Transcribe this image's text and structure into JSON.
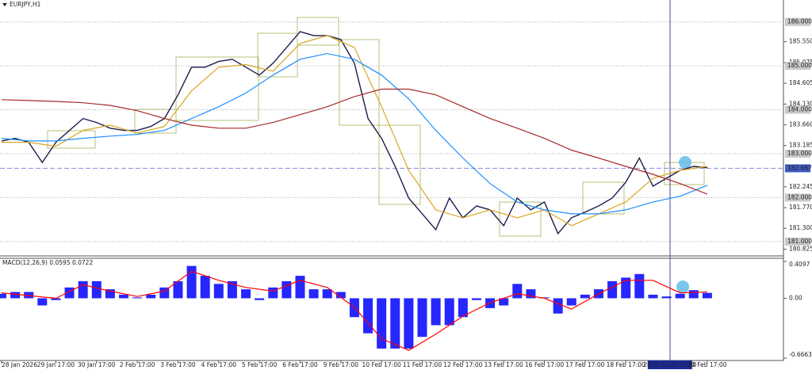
{
  "chart_data": [
    {
      "type": "line",
      "title": "EURJPY,H1",
      "xlim": [
        0,
        460
      ],
      "ylim": [
        180.69,
        186.5
      ],
      "xticks": [
        {
          "value": 0,
          "label": "28 Jan 2026"
        },
        {
          "value": 32,
          "label": "29 Jan 17:00"
        },
        {
          "value": 56,
          "label": "30 Jan 17:00"
        },
        {
          "value": 80,
          "label": "2 Feb 17:00"
        },
        {
          "value": 104,
          "label": "3 Feb 17:00"
        },
        {
          "value": 128,
          "label": "4 Feb 17:00"
        },
        {
          "value": 152,
          "label": "5 Feb 17:00"
        },
        {
          "value": 176,
          "label": "6 Feb 17:00"
        },
        {
          "value": 200,
          "label": "9 Feb 17:00"
        },
        {
          "value": 224,
          "label": "10 Feb 17:00"
        },
        {
          "value": 248,
          "label": "11 Feb 17:00"
        },
        {
          "value": 272,
          "label": "12 Feb 17:00"
        },
        {
          "value": 296,
          "label": "13 Feb 17:00"
        },
        {
          "value": 320,
          "label": "16 Feb 17:00"
        },
        {
          "value": 344,
          "label": "17 Feb 17:00"
        },
        {
          "value": 368,
          "label": "18 Feb 17:00"
        },
        {
          "value": 394,
          "label": "2026.02.20 03:00"
        },
        {
          "value": 416,
          "label": "20 Feb 17:00"
        }
      ],
      "yticks": [
        {
          "value": 185.55,
          "label": "185.550"
        },
        {
          "value": 185.075,
          "label": "185.075"
        },
        {
          "value": 184.605,
          "label": "184.605"
        },
        {
          "value": 184.13,
          "label": "184.130"
        },
        {
          "value": 183.66,
          "label": "183.660"
        },
        {
          "value": 183.185,
          "label": "183.185"
        },
        {
          "value": 182.245,
          "label": "182.245"
        },
        {
          "value": 181.77,
          "label": "181.770"
        },
        {
          "value": 181.3,
          "label": "181.300"
        },
        {
          "value": 180.825,
          "label": "180.825"
        }
      ],
      "levels": [
        {
          "value": 186,
          "label": "186.000"
        },
        {
          "value": 185,
          "label": "185.000"
        },
        {
          "value": 184,
          "label": "184.000"
        },
        {
          "value": 183,
          "label": "183.000"
        },
        {
          "value": 182,
          "label": "182.000"
        },
        {
          "value": 181,
          "label": "181.000"
        }
      ],
      "current_price": {
        "value": 182.667,
        "label": "182.667"
      },
      "series": [
        {
          "type": "line",
          "color": "#1c1c4c",
          "x": [
            0,
            8,
            16,
            24,
            32,
            40,
            48,
            56,
            64,
            72,
            80,
            88,
            96,
            104,
            112,
            120,
            128,
            136,
            144,
            152,
            160,
            168,
            176,
            184,
            192,
            200,
            208,
            216,
            224,
            232,
            240,
            248,
            256,
            264,
            272,
            280,
            288,
            296,
            304,
            312,
            320,
            328,
            336,
            344,
            352,
            360,
            368,
            376,
            384,
            392,
            400,
            408,
            416
          ],
          "values": [
            183.29,
            183.35,
            183.26,
            182.8,
            183.26,
            183.53,
            183.8,
            183.71,
            183.58,
            183.53,
            183.53,
            183.62,
            183.8,
            184.34,
            184.97,
            184.97,
            185.1,
            185.15,
            184.97,
            184.79,
            185.06,
            185.42,
            185.78,
            185.69,
            185.69,
            185.6,
            185.06,
            183.8,
            183.35,
            182.71,
            181.99,
            181.63,
            181.27,
            181.99,
            181.54,
            181.81,
            181.72,
            181.36,
            181.99,
            181.72,
            181.9,
            181.18,
            181.54,
            181.67,
            181.81,
            181.99,
            182.35,
            182.9,
            182.26,
            182.44,
            182.62,
            182.71,
            182.68
          ]
        },
        {
          "type": "line",
          "color": "#daa520",
          "x": [
            0,
            16,
            32,
            48,
            64,
            80,
            96,
            112,
            128,
            144,
            160,
            176,
            192,
            208,
            224,
            240,
            256,
            272,
            288,
            304,
            320,
            336,
            352,
            368,
            384,
            400,
            416
          ],
          "values": [
            183.26,
            183.26,
            183.17,
            183.53,
            183.65,
            183.47,
            183.62,
            184.43,
            184.97,
            185.03,
            184.88,
            185.51,
            185.69,
            185.42,
            184.07,
            182.62,
            181.72,
            181.54,
            181.72,
            181.54,
            181.72,
            181.36,
            181.63,
            181.9,
            182.44,
            182.62,
            182.71
          ]
        },
        {
          "type": "line",
          "color": "#1e90ff",
          "x": [
            0,
            16,
            32,
            48,
            64,
            80,
            96,
            112,
            128,
            144,
            160,
            176,
            192,
            208,
            224,
            240,
            256,
            272,
            288,
            304,
            320,
            336,
            352,
            368,
            384,
            400,
            416
          ],
          "values": [
            183.35,
            183.29,
            183.29,
            183.35,
            183.4,
            183.44,
            183.53,
            183.8,
            184.07,
            184.38,
            184.79,
            185.15,
            185.28,
            185.15,
            184.79,
            184.25,
            183.53,
            182.9,
            182.32,
            181.9,
            181.72,
            181.63,
            181.63,
            181.72,
            181.9,
            182.03,
            182.28
          ]
        },
        {
          "type": "line",
          "color": "#a52a2a",
          "x": [
            0,
            16,
            32,
            48,
            64,
            80,
            96,
            112,
            128,
            144,
            160,
            176,
            192,
            208,
            224,
            240,
            256,
            272,
            288,
            304,
            320,
            336,
            352,
            368,
            384,
            400,
            416
          ],
          "values": [
            184.23,
            184.21,
            184.19,
            184.16,
            184.1,
            183.98,
            183.8,
            183.65,
            183.58,
            183.58,
            183.71,
            183.89,
            184.07,
            184.3,
            184.47,
            184.47,
            184.34,
            184.07,
            183.8,
            183.58,
            183.35,
            183.08,
            182.9,
            182.71,
            182.53,
            182.32,
            182.08
          ]
        }
      ]
    },
    {
      "type": "bar",
      "title": "MACD(12,26,9) 0.0595 0.0722",
      "xlim": [
        0,
        460
      ],
      "ylim": [
        -0.6663,
        0.4097
      ],
      "yticks": [
        0.4097,
        {
          "value": 0,
          "label": "0.00"
        },
        -0.6663
      ],
      "series": [
        {
          "type": "bar",
          "color": "#0000ff",
          "x": [
            0,
            8,
            16,
            24,
            32,
            40,
            48,
            56,
            64,
            72,
            80,
            88,
            96,
            104,
            112,
            120,
            128,
            136,
            144,
            152,
            160,
            168,
            176,
            184,
            192,
            200,
            208,
            216,
            224,
            232,
            240,
            248,
            256,
            264,
            272,
            280,
            288,
            296,
            304,
            312,
            320,
            328,
            336,
            344,
            352,
            360,
            368,
            376,
            384,
            392,
            400,
            408,
            416
          ],
          "values": [
            0.05,
            0.07,
            0.07,
            -0.08,
            -0.02,
            0.12,
            0.19,
            0.19,
            0.1,
            0.04,
            0.01,
            0.04,
            0.12,
            0.19,
            0.36,
            0.25,
            0.16,
            0.19,
            0.1,
            -0.02,
            0.12,
            0.19,
            0.25,
            0.1,
            0.1,
            0.07,
            -0.21,
            -0.39,
            -0.56,
            -0.56,
            -0.56,
            -0.43,
            -0.3,
            -0.3,
            -0.21,
            -0.02,
            -0.11,
            -0.08,
            0.16,
            0.1,
            0.01,
            -0.17,
            -0.08,
            0.04,
            0.1,
            0.19,
            0.23,
            0.27,
            0.04,
            0.02,
            0.05,
            0.09,
            0.06
          ]
        },
        {
          "type": "line",
          "color": "#ff0000",
          "x": [
            0,
            16,
            32,
            48,
            64,
            80,
            96,
            112,
            128,
            144,
            160,
            176,
            192,
            208,
            224,
            240,
            256,
            272,
            288,
            304,
            320,
            336,
            352,
            368,
            384,
            400,
            416
          ],
          "values": [
            0.06,
            0.03,
            0.0,
            0.15,
            0.08,
            0.02,
            0.08,
            0.3,
            0.2,
            0.12,
            0.08,
            0.2,
            0.12,
            -0.1,
            -0.45,
            -0.58,
            -0.4,
            -0.2,
            -0.05,
            0.05,
            0.0,
            -0.12,
            0.05,
            0.2,
            0.2,
            0.06,
            0.07
          ]
        }
      ]
    }
  ]
}
